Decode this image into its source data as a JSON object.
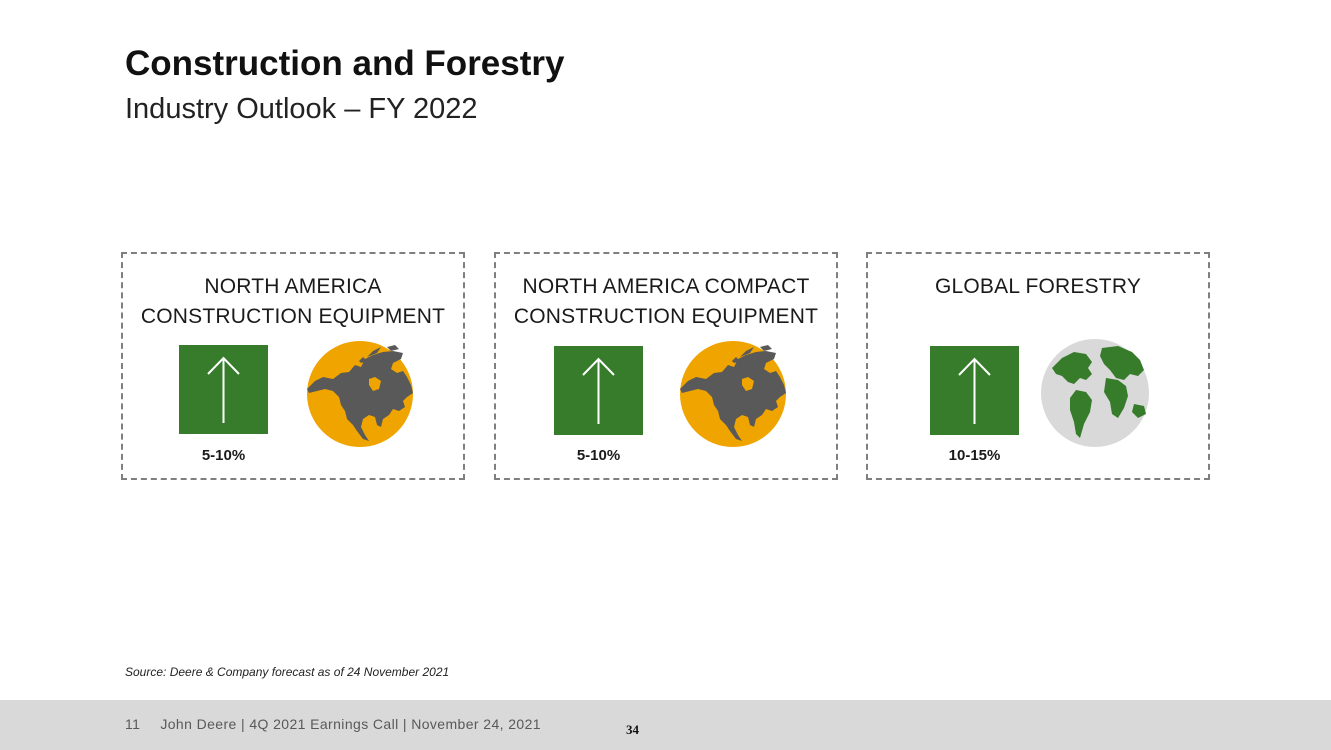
{
  "header": {
    "title": "Construction and Forestry",
    "subtitle": "Industry Outlook – FY 2022"
  },
  "cards": [
    {
      "title_line1": "NORTH AMERICA",
      "title_line2": "CONSTRUCTION EQUIPMENT",
      "outlook": "5-10%",
      "direction_icon": "up-arrow-icon",
      "region_icon": "north-america-map-icon"
    },
    {
      "title_line1": "NORTH AMERICA COMPACT",
      "title_line2": "CONSTRUCTION EQUIPMENT",
      "outlook": "5-10%",
      "direction_icon": "up-arrow-icon",
      "region_icon": "north-america-map-icon"
    },
    {
      "title_line1": "GLOBAL FORESTRY",
      "title_line2": "",
      "outlook": "10-15%",
      "direction_icon": "up-arrow-icon",
      "region_icon": "globe-icon"
    }
  ],
  "source_note": "Source: Deere & Company forecast as of 24 November 2021",
  "footer": {
    "slide_number": "11",
    "text": "John Deere | 4Q 2021 Earnings Call | November 24, 2021",
    "page_number": "34"
  },
  "colors": {
    "deere_green": "#367c2b",
    "deere_yellow": "#f0a400",
    "map_gray": "#595959",
    "globe_gray": "#d9d9d9",
    "footer_gray": "#d9d9d9"
  }
}
